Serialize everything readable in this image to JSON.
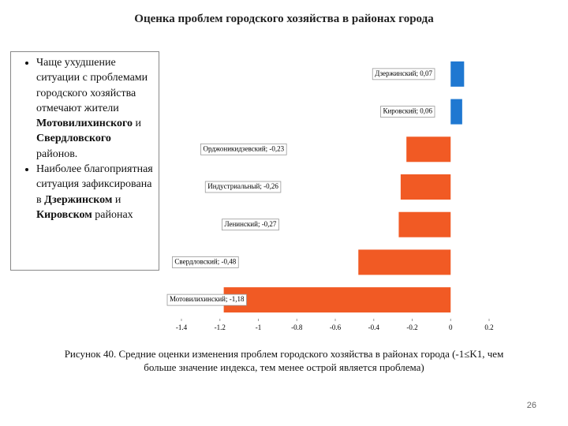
{
  "header": {
    "title": "Оценка проблем городского хозяйства в районах  города"
  },
  "bullets": [
    [
      {
        "text": "Чаще ухудшение ситуации с проблемами городского хозяйства отмечают  жители ",
        "bold": false
      },
      {
        "text": "Мотовилихинского",
        "bold": true
      },
      {
        "text": " и ",
        "bold": false
      },
      {
        "text": "Свердловского",
        "bold": true
      },
      {
        "text": " районов.",
        "bold": false
      }
    ],
    [
      {
        "text": "Наиболее благоприятная ситуация зафиксирована в ",
        "bold": false
      },
      {
        "text": "Дзержинском",
        "bold": true
      },
      {
        "text": " и ",
        "bold": false
      },
      {
        "text": "Кировском",
        "bold": true
      },
      {
        "text": " районах",
        "bold": false
      }
    ]
  ],
  "chart_data": {
    "type": "bar",
    "orientation": "horizontal",
    "value_labels": [
      "Дзержинский; 0,07",
      "Кировский; 0,06",
      "Орджоникидзевский; -0,23",
      "Индустриальный; -0,26",
      "Ленинский; -0,27",
      "Свердловский; -0,48",
      "Мотовилихинский; -1,18"
    ],
    "values": [
      0.07,
      0.06,
      -0.23,
      -0.26,
      -0.27,
      -0.48,
      -1.18
    ],
    "colors": [
      "#1f78d1",
      "#1f78d1",
      "#f15a24",
      "#f15a24",
      "#f15a24",
      "#f15a24",
      "#f15a24"
    ],
    "xlim": [
      -1.4,
      0.2
    ],
    "xticks": [
      -1.4,
      -1.2,
      -1,
      -0.8,
      -0.6,
      -0.4,
      -0.2,
      0,
      0.2
    ],
    "grid": false
  },
  "caption": "Рисунок 40. Средние оценки изменения проблем городского хозяйства  в районах города (-1≤K1, чем больше значение индекса, тем менее острой является проблема)",
  "page_number": "26"
}
